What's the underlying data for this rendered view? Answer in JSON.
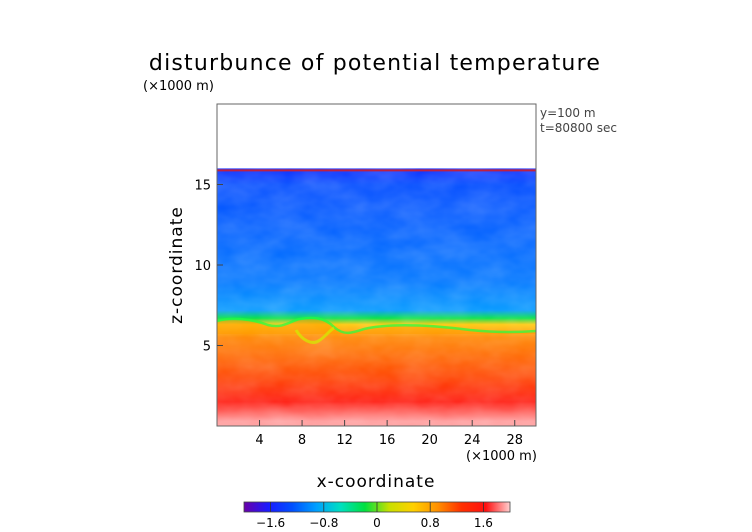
{
  "chart_data": {
    "type": "heatmap",
    "title": "disturbunce of potential temperature",
    "unit_note": "(×1000 m)",
    "annotations": [
      "y=100 m",
      "t=80800 sec"
    ],
    "xlabel": "x-coordinate",
    "ylabel": "z-coordinate",
    "x_unit": "(×1000 m)",
    "xlim": [
      0,
      30
    ],
    "ylim": [
      0,
      20
    ],
    "x_ticks": [
      4,
      8,
      12,
      16,
      20,
      24,
      28
    ],
    "y_ticks": [
      5,
      10,
      15
    ],
    "domain_top_z": 16,
    "colorbar": {
      "min": -2.0,
      "max": 2.0,
      "ticks": [
        -1.6,
        -0.8,
        0,
        0.8,
        1.6
      ],
      "colors": [
        "#6a00a8",
        "#1a1aff",
        "#0050ff",
        "#00a0ff",
        "#00e0c0",
        "#00e040",
        "#c8e000",
        "#ffd000",
        "#ff9000",
        "#ff3000",
        "#ff1010",
        "#ffd0d0"
      ]
    },
    "field_profile": {
      "z": [
        0.3,
        1.5,
        3,
        4.5,
        5.5,
        6.3,
        6.7,
        7.2,
        9,
        12,
        15,
        16
      ],
      "value": [
        1.9,
        1.55,
        1.2,
        1.05,
        0.95,
        0.6,
        -0.2,
        -0.95,
        -1.1,
        -1.2,
        -1.3,
        -1.5
      ]
    }
  }
}
